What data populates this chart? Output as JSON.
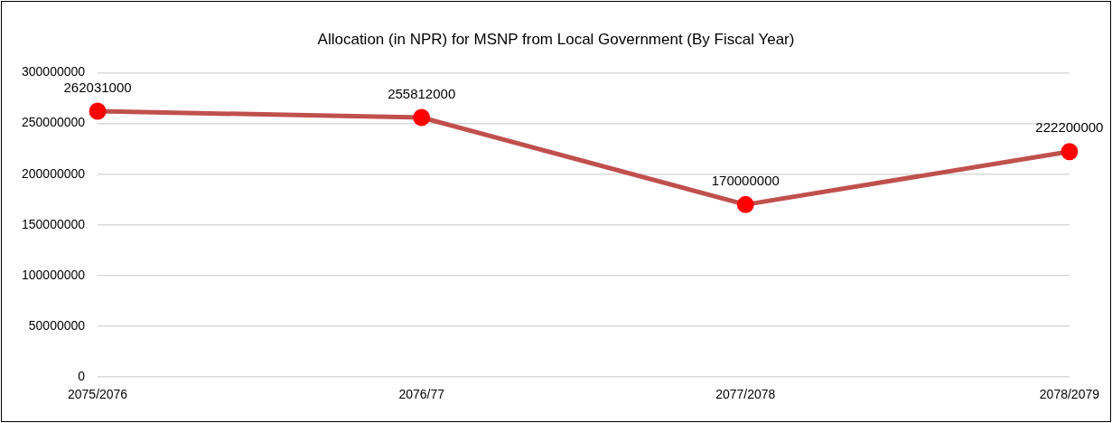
{
  "chart_data": {
    "type": "line",
    "title": "Allocation (in NPR) for MSNP from Local Government (By Fiscal Year)",
    "categories": [
      "2075/2076",
      "2076/77",
      "2077/2078",
      "2078/2079"
    ],
    "series": [
      {
        "color": "#c0504d",
        "colors": [
          "#ff0000",
          "#ff0000",
          "#ff0000",
          "#ff0000"
        ],
        "values": [
          262031000,
          255812000,
          170000000,
          222200000
        ]
      }
    ],
    "ylim": [
      0,
      300000000
    ],
    "yticks": [
      0,
      50000000,
      100000000,
      150000000,
      200000000,
      250000000,
      300000000
    ],
    "grid": "y",
    "legend": false,
    "marker": "circle",
    "line_style": "solid",
    "data_labels": true
  }
}
